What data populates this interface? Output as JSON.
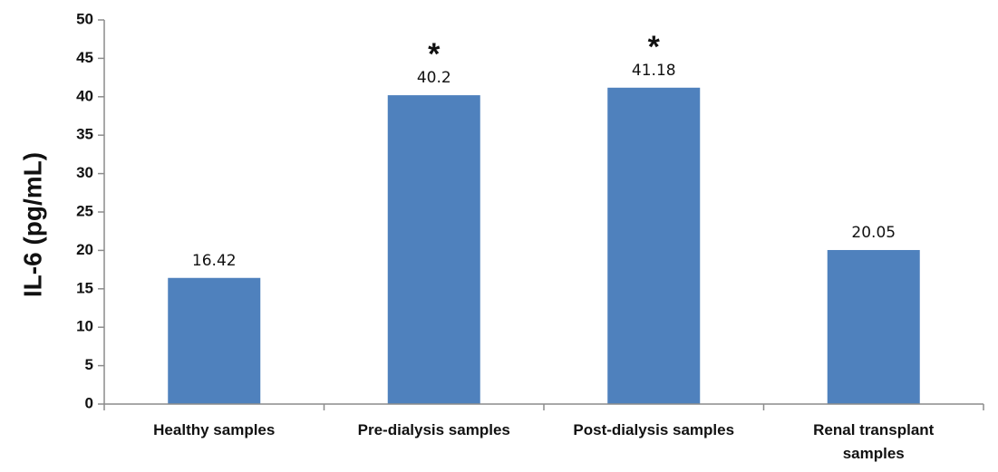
{
  "chart_data": {
    "type": "bar",
    "categories": [
      [
        "Healthy samples"
      ],
      [
        "Pre-dialysis samples"
      ],
      [
        "Post-dialysis samples"
      ],
      [
        "Renal transplant",
        "samples"
      ]
    ],
    "values": [
      16.42,
      40.2,
      41.18,
      20.05
    ],
    "data_labels": [
      "16.42",
      "40.2",
      "41.18",
      "20.05"
    ],
    "significance": [
      "",
      "*",
      "*",
      ""
    ],
    "title": "",
    "xlabel": "",
    "ylabel": "IL-6 (pg/mL)",
    "ylim": [
      0,
      50
    ],
    "yticks": [
      0,
      5,
      10,
      15,
      20,
      25,
      30,
      35,
      40,
      45,
      50
    ],
    "grid": false,
    "legend": "none",
    "bar_color": "#4f81bd"
  }
}
